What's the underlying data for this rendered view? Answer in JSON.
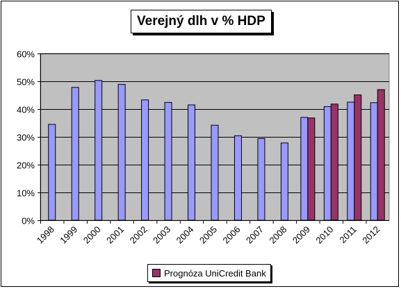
{
  "chart_data": {
    "type": "bar",
    "title": "Verejný dlh v % HDP",
    "categories": [
      "1998",
      "1999",
      "2000",
      "2001",
      "2002",
      "2003",
      "2004",
      "2005",
      "2006",
      "2007",
      "2008",
      "2009",
      "2010",
      "2011",
      "2012"
    ],
    "series": [
      {
        "values": [
          34.5,
          47.8,
          50.3,
          48.9,
          43.3,
          42.4,
          41.5,
          34.2,
          30.4,
          29.4,
          27.8,
          37.0,
          40.9,
          42.5,
          42.3
        ],
        "color": "#9999ff"
      },
      {
        "name": "Prognóza UniCredit Bank",
        "values": [
          null,
          null,
          null,
          null,
          null,
          null,
          null,
          null,
          null,
          null,
          null,
          36.8,
          41.8,
          45.1,
          47.0
        ],
        "color": "#993366"
      }
    ],
    "ylim": [
      0,
      60
    ],
    "yticks": [
      "0%",
      "10%",
      "20%",
      "30%",
      "40%",
      "50%",
      "60%"
    ],
    "grid": true,
    "plot_background": "#c0c0c0",
    "legend_position": "bottom"
  }
}
